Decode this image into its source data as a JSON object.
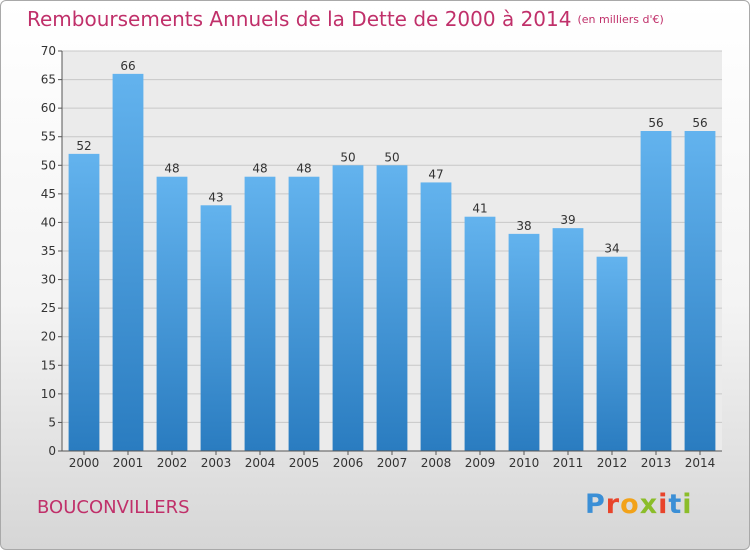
{
  "title": "Remboursements Annuels de la Dette de 2000 à 2014",
  "unit": "(en milliers d'€)",
  "commune": "BOUCONVILLERS",
  "logo": {
    "letters": [
      "P",
      "r",
      "o",
      "x",
      "i",
      "t",
      "i"
    ]
  },
  "colors": {
    "title": "#c0306a",
    "bar_top": "#63b3ee",
    "bar_bottom": "#2a7cc0"
  },
  "chart_data": {
    "type": "bar",
    "title": "Remboursements Annuels de la Dette de 2000 à 2014",
    "xlabel": "",
    "ylabel": "",
    "ylim": [
      0,
      70
    ],
    "yticks": [
      0,
      5,
      10,
      15,
      20,
      25,
      30,
      35,
      40,
      45,
      50,
      55,
      60,
      65,
      70
    ],
    "grid": true,
    "categories": [
      "2000",
      "2001",
      "2002",
      "2003",
      "2004",
      "2005",
      "2006",
      "2007",
      "2008",
      "2009",
      "2010",
      "2011",
      "2012",
      "2013",
      "2014"
    ],
    "values": [
      52,
      66,
      48,
      43,
      48,
      48,
      50,
      50,
      47,
      41,
      38,
      39,
      34,
      56,
      56
    ]
  }
}
